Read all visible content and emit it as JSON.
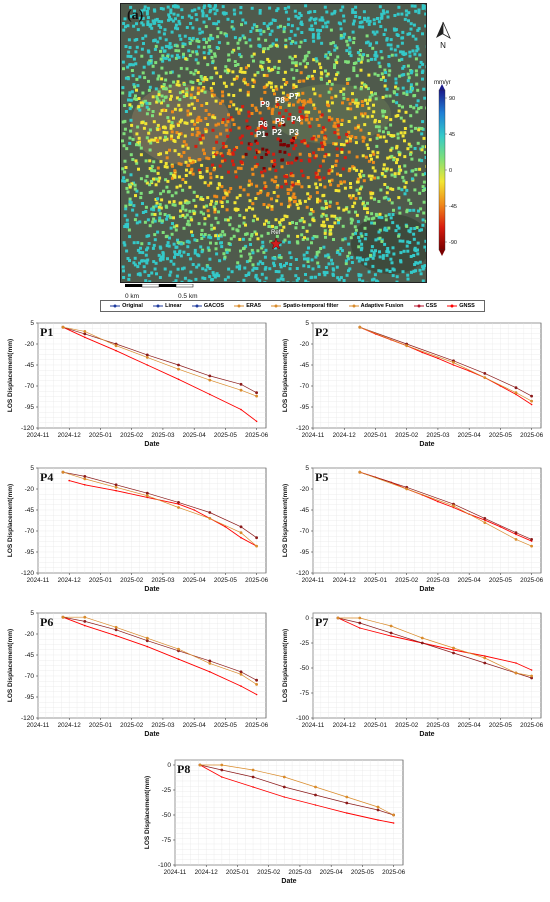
{
  "map": {
    "panel_label": "(a)",
    "north_label": "N",
    "colorbar": {
      "unit": "mm/yr",
      "ticks": [
        "90",
        "45",
        "0",
        "-45",
        "-90"
      ],
      "colors": [
        "#1a1a8c",
        "#1f7fd6",
        "#34c9c9",
        "#7fe07a",
        "#f2e633",
        "#f08a1a",
        "#d91c0f",
        "#7a0000"
      ]
    },
    "points": [
      "P9",
      "P8",
      "P7",
      "P6",
      "P5",
      "P4",
      "P1",
      "P2",
      "P3"
    ],
    "reference_label": "Ref",
    "scale_labels": [
      "0 km",
      "0.5 km"
    ]
  },
  "legend": [
    {
      "label": "Original",
      "color": "#1f3b9e"
    },
    {
      "label": "Linear",
      "color": "#1f3b9e"
    },
    {
      "label": "GACOS",
      "color": "#1f3b9e"
    },
    {
      "label": "ERA5",
      "color": "#d98b2b"
    },
    {
      "label": "Spatio-temporal filter",
      "color": "#d98b2b"
    },
    {
      "label": "Adaptive Fusion",
      "color": "#d98b2b"
    },
    {
      "label": "CSS",
      "color": "#b3122a"
    },
    {
      "label": "GNSS",
      "color": "#ff0000"
    }
  ],
  "chart_data": [
    {
      "type": "line",
      "name": "P1",
      "ylim": [
        -120,
        5
      ],
      "yticks": [
        5,
        -20,
        -45,
        -70,
        -95,
        -120
      ],
      "xtick_labels": [
        "2024-11",
        "2024-12",
        "2025-01",
        "2025-02",
        "2025-03",
        "2025-04",
        "2025-05",
        "2025-06"
      ],
      "xlabel": "Date",
      "ylabel": "LOS Displacement(mm)",
      "series": [
        {
          "color": "#ff0000",
          "x": [
            0.8,
            1.5,
            2.5,
            3.5,
            4.5,
            5.5,
            6.5,
            7.0
          ],
          "y": [
            0,
            -12,
            -28,
            -45,
            -62,
            -80,
            -98,
            -112
          ]
        },
        {
          "color": "#8b1a1a",
          "x": [
            0.8,
            1.5,
            2.5,
            3.5,
            4.5,
            5.5,
            6.5,
            7.0
          ],
          "y": [
            0,
            -8,
            -20,
            -33,
            -45,
            -58,
            -68,
            -78
          ]
        },
        {
          "color": "#d98b2b",
          "x": [
            0.8,
            1.5,
            2.5,
            3.5,
            4.5,
            5.5,
            6.5,
            7.0
          ],
          "y": [
            0,
            -5,
            -22,
            -36,
            -50,
            -63,
            -75,
            -82
          ]
        }
      ]
    },
    {
      "type": "line",
      "name": "P2",
      "ylim": [
        -120,
        5
      ],
      "yticks": [
        5,
        -20,
        -45,
        -70,
        -95,
        -120
      ],
      "xtick_labels": [
        "2024-11",
        "2024-12",
        "2025-01",
        "2025-02",
        "2025-03",
        "2025-04",
        "2025-05",
        "2025-06"
      ],
      "xlabel": "Date",
      "ylabel": "LOS Displacement(mm)",
      "series": [
        {
          "color": "#ff0000",
          "x": [
            1.5,
            2.0,
            2.5,
            3.0,
            3.5,
            4.0,
            4.5,
            5.0,
            5.5,
            6.0,
            6.5,
            7.0
          ],
          "y": [
            0,
            -8,
            -15,
            -22,
            -30,
            -37,
            -45,
            -52,
            -60,
            -70,
            -80,
            -92
          ]
        },
        {
          "color": "#8b1a1a",
          "x": [
            1.5,
            3.0,
            4.5,
            5.5,
            6.5,
            7.0
          ],
          "y": [
            0,
            -20,
            -40,
            -55,
            -72,
            -82
          ]
        },
        {
          "color": "#d98b2b",
          "x": [
            1.5,
            3.0,
            4.5,
            5.5,
            6.5,
            7.0
          ],
          "y": [
            0,
            -22,
            -42,
            -60,
            -78,
            -88
          ]
        }
      ]
    },
    {
      "type": "line",
      "name": "P4",
      "ylim": [
        -120,
        5
      ],
      "yticks": [
        5,
        -20,
        -45,
        -70,
        -95,
        -120
      ],
      "xtick_labels": [
        "2024-11",
        "2024-12",
        "2025-01",
        "2025-02",
        "2025-03",
        "2025-04",
        "2025-05",
        "2025-06"
      ],
      "xlabel": "Date",
      "ylabel": "LOS Displacement(mm)",
      "series": [
        {
          "color": "#ff0000",
          "x": [
            1.0,
            1.5,
            2.5,
            3.5,
            4.5,
            5.0,
            5.5,
            6.0,
            6.5,
            7.0
          ],
          "y": [
            -10,
            -15,
            -22,
            -30,
            -38,
            -45,
            -55,
            -65,
            -78,
            -88
          ]
        },
        {
          "color": "#8b1a1a",
          "x": [
            0.8,
            1.5,
            2.5,
            3.5,
            4.5,
            5.5,
            6.5,
            7.0
          ],
          "y": [
            0,
            -5,
            -15,
            -25,
            -36,
            -48,
            -65,
            -78
          ]
        },
        {
          "color": "#d98b2b",
          "x": [
            0.8,
            1.5,
            2.5,
            3.5,
            4.5,
            5.5,
            6.5,
            7.0
          ],
          "y": [
            0,
            -8,
            -18,
            -28,
            -42,
            -55,
            -72,
            -88
          ]
        }
      ]
    },
    {
      "type": "line",
      "name": "P5",
      "ylim": [
        -120,
        5
      ],
      "yticks": [
        5,
        -20,
        -45,
        -70,
        -95,
        -120
      ],
      "xtick_labels": [
        "2024-11",
        "2024-12",
        "2025-01",
        "2025-02",
        "2025-03",
        "2025-04",
        "2025-05",
        "2025-06"
      ],
      "xlabel": "Date",
      "ylabel": "LOS Displacement(mm)",
      "series": [
        {
          "color": "#ff0000",
          "x": [
            1.5,
            2.0,
            2.5,
            3.0,
            3.5,
            4.0,
            4.5,
            5.0,
            5.5,
            6.0,
            6.5,
            7.0
          ],
          "y": [
            0,
            -6,
            -12,
            -20,
            -27,
            -35,
            -42,
            -50,
            -57,
            -65,
            -74,
            -82
          ]
        },
        {
          "color": "#8b1a1a",
          "x": [
            1.5,
            3.0,
            4.5,
            5.5,
            6.5,
            7.0
          ],
          "y": [
            0,
            -18,
            -38,
            -55,
            -72,
            -80
          ]
        },
        {
          "color": "#d98b2b",
          "x": [
            1.5,
            3.0,
            4.5,
            5.5,
            6.5,
            7.0
          ],
          "y": [
            0,
            -20,
            -40,
            -60,
            -80,
            -88
          ]
        }
      ]
    },
    {
      "type": "line",
      "name": "P6",
      "ylim": [
        -120,
        5
      ],
      "yticks": [
        5,
        -20,
        -45,
        -70,
        -95,
        -120
      ],
      "xtick_labels": [
        "2024-11",
        "2024-12",
        "2025-01",
        "2025-02",
        "2025-03",
        "2025-04",
        "2025-05",
        "2025-06"
      ],
      "xlabel": "Date",
      "ylabel": "LOS Displacement(mm)",
      "series": [
        {
          "color": "#ff0000",
          "x": [
            0.8,
            1.5,
            2.5,
            3.5,
            4.5,
            5.5,
            6.5,
            7.0
          ],
          "y": [
            0,
            -10,
            -22,
            -35,
            -50,
            -65,
            -82,
            -92
          ]
        },
        {
          "color": "#8b1a1a",
          "x": [
            0.8,
            1.5,
            2.5,
            3.5,
            4.5,
            5.5,
            6.5,
            7.0
          ],
          "y": [
            0,
            -5,
            -15,
            -28,
            -40,
            -52,
            -65,
            -75
          ]
        },
        {
          "color": "#d98b2b",
          "x": [
            0.8,
            1.5,
            2.5,
            3.5,
            4.5,
            5.5,
            6.5,
            7.0
          ],
          "y": [
            0,
            0,
            -12,
            -25,
            -38,
            -55,
            -68,
            -80
          ]
        }
      ]
    },
    {
      "type": "line",
      "name": "P7",
      "ylim": [
        -100,
        5
      ],
      "yticks": [
        0,
        -25,
        -50,
        -75,
        -100
      ],
      "xtick_labels": [
        "2024-11",
        "2024-12",
        "2025-01",
        "2025-02",
        "2025-03",
        "2025-04",
        "2025-05",
        "2025-06"
      ],
      "xlabel": "Date",
      "ylabel": "LOS Displacement(mm)",
      "series": [
        {
          "color": "#ff0000",
          "x": [
            0.8,
            1.5,
            2.5,
            3.5,
            4.5,
            5.5,
            6.5,
            7.0
          ],
          "y": [
            0,
            -10,
            -18,
            -25,
            -32,
            -38,
            -45,
            -52
          ]
        },
        {
          "color": "#8b1a1a",
          "x": [
            0.8,
            1.5,
            2.5,
            3.5,
            4.5,
            5.5,
            6.5,
            7.0
          ],
          "y": [
            0,
            -5,
            -15,
            -25,
            -35,
            -45,
            -55,
            -60
          ]
        },
        {
          "color": "#d98b2b",
          "x": [
            0.8,
            1.5,
            2.5,
            3.5,
            4.5,
            5.5,
            6.5,
            7.0
          ],
          "y": [
            0,
            0,
            -8,
            -20,
            -30,
            -40,
            -55,
            -58
          ]
        }
      ]
    },
    {
      "type": "line",
      "name": "P8",
      "ylim": [
        -100,
        5
      ],
      "yticks": [
        0,
        -25,
        -50,
        -75,
        -100
      ],
      "xtick_labels": [
        "2024-11",
        "2024-12",
        "2025-01",
        "2025-02",
        "2025-03",
        "2025-04",
        "2025-05",
        "2025-06"
      ],
      "xlabel": "Date",
      "ylabel": "LOS Displacement(mm)",
      "series": [
        {
          "color": "#ff0000",
          "x": [
            0.8,
            1.5,
            2.5,
            3.5,
            4.5,
            5.5,
            6.5,
            7.0
          ],
          "y": [
            0,
            -12,
            -22,
            -32,
            -40,
            -48,
            -55,
            -58
          ]
        },
        {
          "color": "#8b1a1a",
          "x": [
            0.8,
            1.5,
            2.5,
            3.5,
            4.5,
            5.5,
            6.5,
            7.0
          ],
          "y": [
            0,
            -5,
            -12,
            -22,
            -30,
            -38,
            -45,
            -50
          ]
        },
        {
          "color": "#d98b2b",
          "x": [
            0.8,
            1.5,
            2.5,
            3.5,
            4.5,
            5.5,
            6.5,
            7.0
          ],
          "y": [
            0,
            0,
            -5,
            -12,
            -22,
            -32,
            -42,
            -50
          ]
        }
      ]
    }
  ]
}
